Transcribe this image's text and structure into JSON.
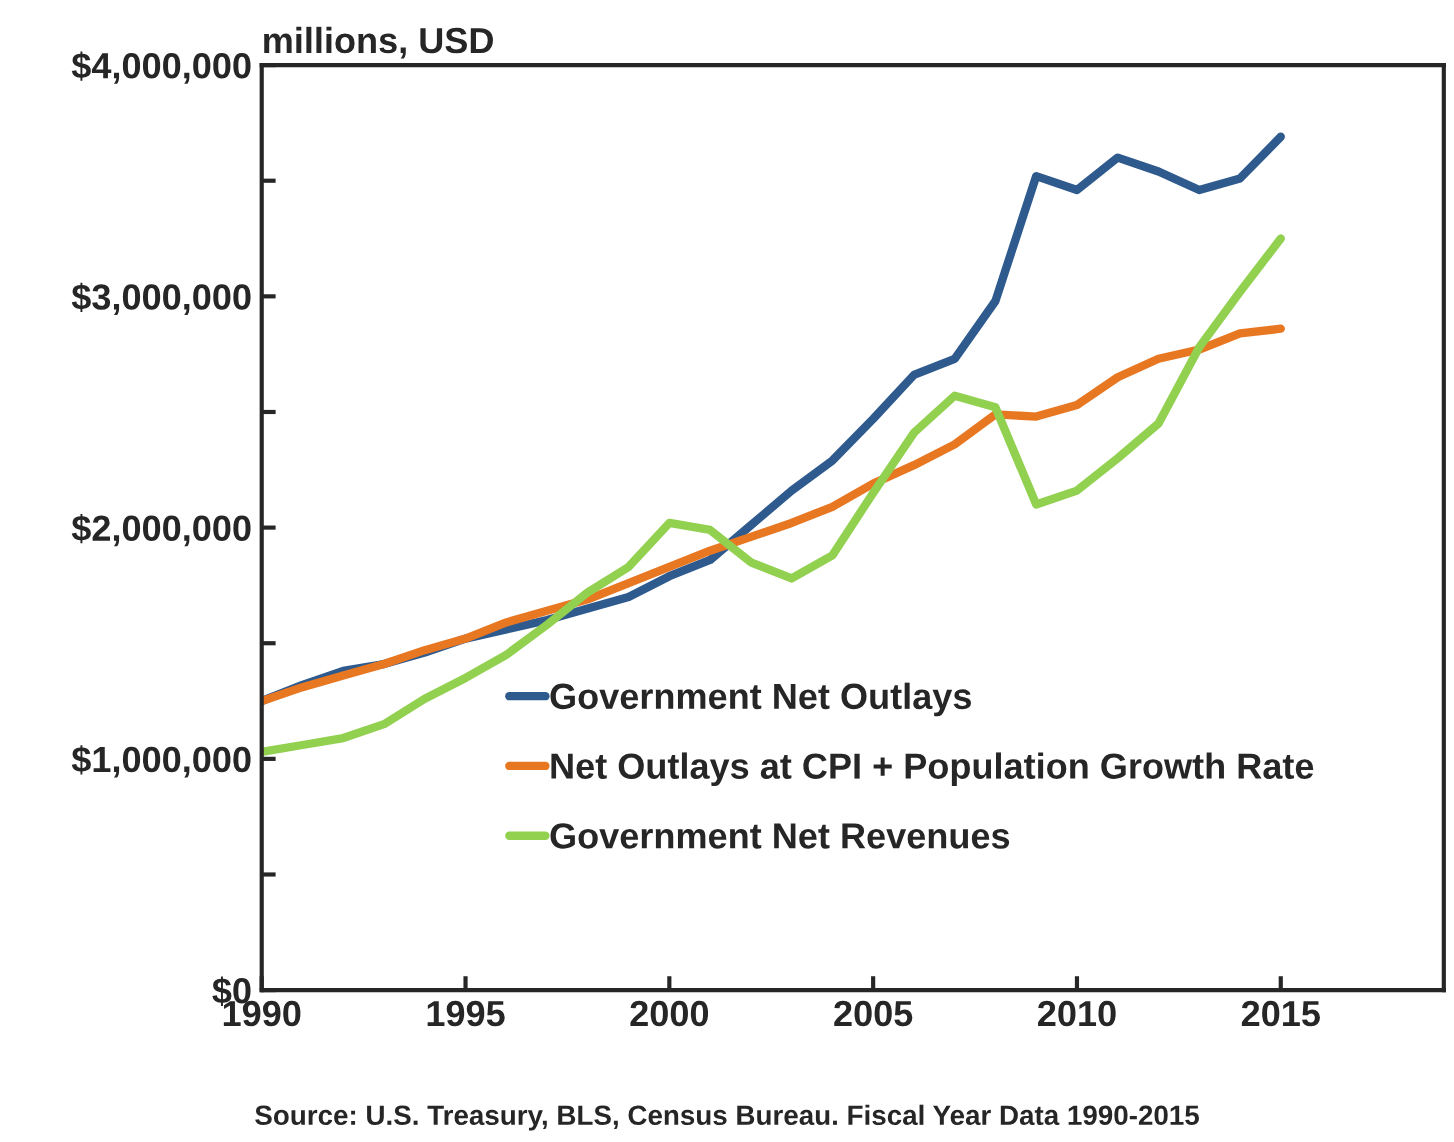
{
  "chart_data": {
    "type": "line",
    "ylabel": "millions, USD",
    "annotations": [
      "Source: U.S. Treasury, BLS, Census Bureau. Fiscal Year Data 1990-2015"
    ],
    "x": [
      1990,
      1991,
      1992,
      1993,
      1994,
      1995,
      1996,
      1997,
      1998,
      1999,
      2000,
      2001,
      2002,
      2003,
      2004,
      2005,
      2006,
      2007,
      2008,
      2009,
      2010,
      2011,
      2012,
      2013,
      2014,
      2015
    ],
    "series": [
      {
        "name": "Government Net Outlays",
        "color": "#2e5a8e",
        "values": [
          1250000,
          1320000,
          1380000,
          1410000,
          1460000,
          1520000,
          1560000,
          1600000,
          1650000,
          1700000,
          1790000,
          1860000,
          2010000,
          2160000,
          2290000,
          2470000,
          2660000,
          2730000,
          2980000,
          3520000,
          3460000,
          3600000,
          3540000,
          3460000,
          3510000,
          3690000
        ]
      },
      {
        "name": "Net Outlays at CPI + Population Growth Rate",
        "color": "#e87722",
        "values": [
          1250000,
          1310000,
          1360000,
          1410000,
          1470000,
          1520000,
          1590000,
          1640000,
          1690000,
          1760000,
          1830000,
          1900000,
          1960000,
          2020000,
          2090000,
          2190000,
          2270000,
          2360000,
          2490000,
          2480000,
          2530000,
          2650000,
          2730000,
          2770000,
          2840000,
          2860000
        ]
      },
      {
        "name": "Government Net Revenues",
        "color": "#92d050",
        "values": [
          1030000,
          1060000,
          1090000,
          1150000,
          1260000,
          1350000,
          1450000,
          1580000,
          1720000,
          1830000,
          2020000,
          1990000,
          1850000,
          1780000,
          1880000,
          2150000,
          2410000,
          2570000,
          2520000,
          2100000,
          2160000,
          2300000,
          2450000,
          2780000,
          3020000,
          3250000
        ]
      }
    ],
    "xlim": [
      1990,
      2019
    ],
    "xticks": [
      1990,
      1995,
      2000,
      2005,
      2010,
      2015
    ],
    "ylim": [
      0,
      4000000
    ],
    "yticks": [
      {
        "value": 0,
        "label": "$0"
      },
      {
        "value": 500000,
        "label": null
      },
      {
        "value": 1000000,
        "label": "$1,000,000"
      },
      {
        "value": 1500000,
        "label": null
      },
      {
        "value": 2000000,
        "label": "$2,000,000"
      },
      {
        "value": 2500000,
        "label": null
      },
      {
        "value": 3000000,
        "label": "$3,000,000"
      },
      {
        "value": 3500000,
        "label": null
      },
      {
        "value": 4000000,
        "label": "$4,000,000"
      }
    ],
    "grid": false,
    "legend": "bottom",
    "marker": "none",
    "line_style": "solid"
  }
}
